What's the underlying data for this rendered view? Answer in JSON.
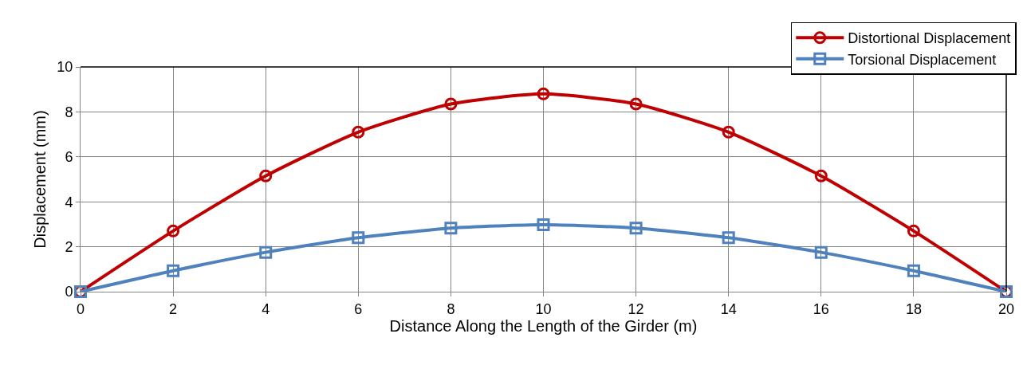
{
  "chart_data": {
    "type": "line",
    "xlabel": "Distance Along the Length of the Girder (m)",
    "ylabel": "Displacement (mm)",
    "x": [
      0,
      2,
      4,
      6,
      8,
      10,
      12,
      14,
      16,
      18,
      20
    ],
    "series": [
      {
        "name": "Distortional Displacement",
        "color": "#c00000",
        "marker": "circle",
        "values": [
          0,
          2.7,
          5.15,
          7.1,
          8.35,
          8.8,
          8.35,
          7.1,
          5.15,
          2.7,
          0
        ]
      },
      {
        "name": "Torsional Displacement",
        "color": "#4f81bd",
        "marker": "square",
        "values": [
          0,
          0.93,
          1.75,
          2.4,
          2.83,
          2.98,
          2.83,
          2.4,
          1.75,
          0.93,
          0
        ]
      }
    ],
    "xlim": [
      0,
      20
    ],
    "xticks": [
      0,
      2,
      4,
      6,
      8,
      10,
      12,
      14,
      16,
      18,
      20
    ],
    "ylim": [
      0,
      10
    ],
    "yticks": [
      0,
      2,
      4,
      6,
      8,
      10
    ],
    "grid": true,
    "legend": "top right",
    "line_style": "solid"
  }
}
